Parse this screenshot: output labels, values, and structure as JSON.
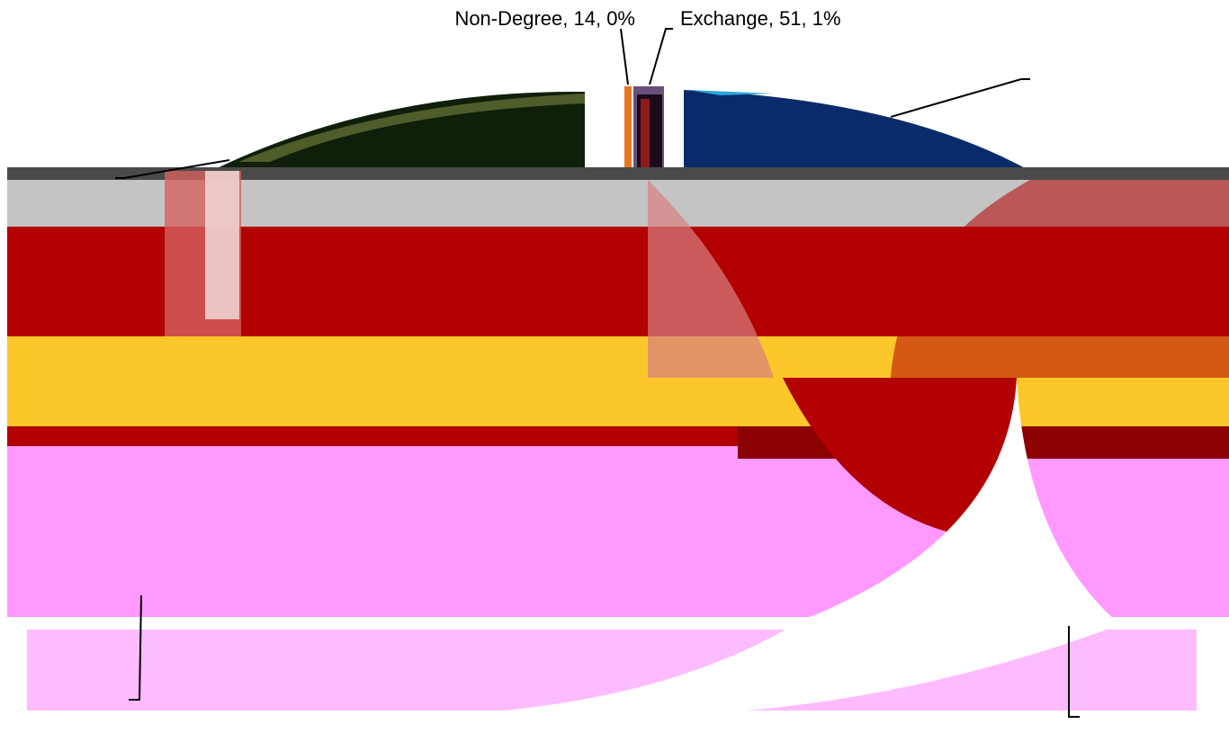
{
  "chart_data": {
    "type": "pie",
    "title": "",
    "slices": [
      {
        "label": "Non-Degree",
        "value": 14,
        "percent": "0%",
        "color": "#e87722"
      },
      {
        "label": "Exchange",
        "value": 51,
        "percent": "1%",
        "color": "#6b4f7a"
      }
    ],
    "data_labels": [
      "Non-Degree, 14, 0%",
      "Exchange, 51, 1%"
    ],
    "legend": "none"
  }
}
